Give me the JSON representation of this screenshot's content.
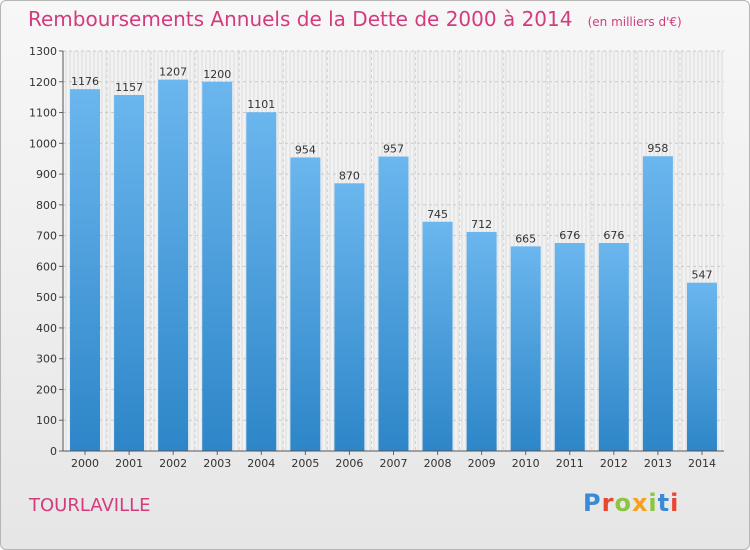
{
  "title": "Remboursements Annuels de la Dette de 2000 à 2014",
  "unit_note": "(en milliers d'€)",
  "commune": "TOURLAVILLE",
  "logo": {
    "text": "Proxiti",
    "colors": [
      "#3a8ad6",
      "#e8462f",
      "#8cc63f",
      "#f7a11a",
      "#8cc63f",
      "#3a8ad6",
      "#e8462f"
    ]
  },
  "colors": {
    "bar_top": "#6bb6ee",
    "bar_bottom": "#2d86c8",
    "accent": "#d33b7e"
  },
  "chart_data": {
    "type": "bar",
    "title": "Remboursements Annuels de la Dette de 2000 à 2014",
    "categories": [
      "2000",
      "2001",
      "2002",
      "2003",
      "2004",
      "2005",
      "2006",
      "2007",
      "2008",
      "2009",
      "2010",
      "2011",
      "2012",
      "2013",
      "2014"
    ],
    "values": [
      1176,
      1157,
      1207,
      1200,
      1101,
      954,
      870,
      957,
      745,
      712,
      665,
      676,
      676,
      958,
      547
    ],
    "ylim": [
      0,
      1300
    ],
    "yticks": [
      0,
      100,
      200,
      300,
      400,
      500,
      600,
      700,
      800,
      900,
      1000,
      1100,
      1200,
      1300
    ],
    "grid": true,
    "xlabel": "",
    "ylabel": ""
  }
}
